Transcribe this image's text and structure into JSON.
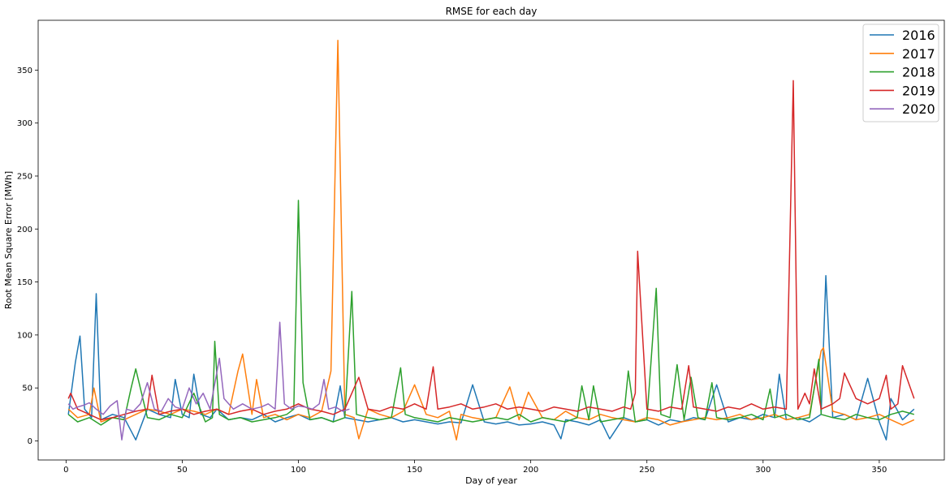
{
  "chart_data": {
    "type": "line",
    "title": "RMSE for each day",
    "xlabel": "Day of year",
    "ylabel": "Root Mean Square Error [MWh]",
    "xlim": [
      -12,
      378
    ],
    "ylim": [
      -18,
      397
    ],
    "xticks": [
      0,
      50,
      100,
      150,
      200,
      250,
      300,
      350
    ],
    "yticks": [
      0,
      50,
      100,
      150,
      200,
      250,
      300,
      350
    ],
    "grid": false,
    "legend_position": "top-right",
    "series": [
      {
        "name": "2016",
        "color": "#1f77b4",
        "x": [
          1,
          4,
          6,
          8,
          11,
          13,
          15,
          20,
          25,
          30,
          35,
          40,
          45,
          47,
          50,
          53,
          55,
          58,
          62,
          65,
          70,
          75,
          80,
          85,
          90,
          95,
          100,
          105,
          110,
          115,
          118,
          120,
          125,
          130,
          135,
          140,
          145,
          150,
          155,
          160,
          165,
          170,
          175,
          180,
          185,
          190,
          195,
          200,
          205,
          210,
          213,
          215,
          220,
          225,
          230,
          234,
          240,
          245,
          250,
          255,
          260,
          265,
          270,
          275,
          280,
          285,
          290,
          295,
          300,
          305,
          307,
          310,
          315,
          320,
          325,
          327,
          330,
          335,
          340,
          345,
          350,
          353,
          355,
          360,
          365
        ],
        "values": [
          25,
          74,
          99,
          30,
          22,
          139,
          20,
          25,
          22,
          1,
          30,
          25,
          22,
          58,
          25,
          22,
          63,
          25,
          22,
          30,
          20,
          22,
          20,
          25,
          18,
          22,
          25,
          20,
          22,
          18,
          52,
          22,
          20,
          18,
          20,
          22,
          18,
          20,
          18,
          16,
          18,
          17,
          53,
          18,
          16,
          18,
          15,
          16,
          18,
          15,
          2,
          20,
          18,
          15,
          20,
          2,
          22,
          18,
          20,
          15,
          20,
          18,
          22,
          20,
          53,
          18,
          22,
          20,
          25,
          22,
          63,
          20,
          22,
          18,
          25,
          156,
          22,
          25,
          20,
          59,
          18,
          1,
          40,
          20,
          30
        ]
      },
      {
        "name": "2017",
        "color": "#ff7f0e",
        "x": [
          1,
          5,
          10,
          12,
          15,
          20,
          25,
          30,
          35,
          40,
          45,
          50,
          55,
          60,
          65,
          70,
          74,
          76,
          80,
          82,
          85,
          90,
          95,
          100,
          105,
          110,
          114,
          117,
          120,
          124,
          126,
          130,
          135,
          140,
          145,
          150,
          155,
          160,
          165,
          168,
          170,
          175,
          180,
          185,
          191,
          195,
          199,
          205,
          210,
          215,
          220,
          225,
          230,
          235,
          240,
          245,
          250,
          255,
          260,
          265,
          270,
          275,
          280,
          285,
          290,
          295,
          300,
          305,
          310,
          315,
          320,
          325,
          326,
          330,
          335,
          340,
          345,
          350,
          355,
          360,
          365
        ],
        "values": [
          30,
          22,
          25,
          50,
          18,
          22,
          20,
          25,
          30,
          28,
          25,
          30,
          28,
          25,
          30,
          25,
          66,
          82,
          25,
          58,
          22,
          25,
          20,
          25,
          22,
          28,
          66,
          378,
          25,
          22,
          2,
          30,
          25,
          22,
          28,
          53,
          25,
          22,
          28,
          1,
          25,
          22,
          20,
          22,
          51,
          20,
          46,
          22,
          20,
          28,
          22,
          20,
          25,
          22,
          20,
          18,
          22,
          20,
          15,
          18,
          20,
          22,
          20,
          22,
          25,
          20,
          22,
          25,
          20,
          22,
          25,
          85,
          88,
          28,
          25,
          20,
          22,
          25,
          20,
          15,
          20
        ]
      },
      {
        "name": "2018",
        "color": "#2ca02c",
        "x": [
          1,
          5,
          10,
          15,
          20,
          25,
          28,
          30,
          35,
          40,
          45,
          50,
          55,
          60,
          63,
          64,
          66,
          70,
          75,
          80,
          85,
          90,
          95,
          98,
          100,
          102,
          105,
          110,
          115,
          120,
          123,
          125,
          130,
          135,
          140,
          144,
          146,
          150,
          155,
          160,
          165,
          170,
          175,
          180,
          185,
          190,
          195,
          200,
          205,
          210,
          215,
          220,
          222,
          225,
          227,
          230,
          235,
          240,
          242,
          245,
          250,
          254,
          256,
          260,
          263,
          266,
          269,
          272,
          275,
          278,
          280,
          285,
          290,
          295,
          300,
          303,
          305,
          310,
          315,
          320,
          324,
          325,
          330,
          335,
          340,
          345,
          350,
          355,
          360,
          365
        ],
        "values": [
          25,
          18,
          22,
          15,
          22,
          20,
          50,
          68,
          22,
          20,
          25,
          22,
          45,
          18,
          22,
          94,
          25,
          20,
          22,
          18,
          20,
          22,
          25,
          30,
          227,
          55,
          20,
          22,
          18,
          22,
          141,
          25,
          22,
          20,
          22,
          69,
          25,
          22,
          20,
          18,
          22,
          20,
          18,
          20,
          22,
          20,
          25,
          18,
          22,
          20,
          18,
          22,
          52,
          20,
          52,
          18,
          20,
          22,
          66,
          18,
          20,
          144,
          25,
          22,
          72,
          20,
          60,
          22,
          20,
          55,
          22,
          20,
          22,
          25,
          20,
          49,
          22,
          25,
          20,
          22,
          77,
          25,
          22,
          20,
          25,
          22,
          20,
          25,
          28,
          25
        ]
      },
      {
        "name": "2019",
        "color": "#d62728",
        "x": [
          1,
          2,
          5,
          10,
          15,
          20,
          25,
          30,
          35,
          37,
          40,
          45,
          50,
          55,
          60,
          65,
          70,
          75,
          80,
          85,
          90,
          95,
          100,
          105,
          110,
          115,
          120,
          126,
          130,
          135,
          140,
          145,
          150,
          155,
          158,
          160,
          165,
          170,
          175,
          180,
          185,
          190,
          195,
          200,
          205,
          210,
          215,
          220,
          225,
          230,
          235,
          240,
          243,
          245,
          246,
          250,
          255,
          260,
          265,
          268,
          270,
          275,
          280,
          285,
          290,
          295,
          300,
          305,
          310,
          313,
          315,
          318,
          320,
          322,
          325,
          330,
          333,
          335,
          340,
          345,
          350,
          353,
          355,
          358,
          360,
          365
        ],
        "values": [
          40,
          45,
          30,
          25,
          20,
          22,
          25,
          28,
          30,
          62,
          25,
          28,
          30,
          25,
          28,
          30,
          25,
          28,
          30,
          25,
          28,
          30,
          35,
          30,
          28,
          25,
          30,
          60,
          30,
          28,
          32,
          30,
          35,
          30,
          70,
          30,
          32,
          35,
          30,
          32,
          35,
          30,
          32,
          30,
          28,
          32,
          30,
          28,
          32,
          30,
          28,
          32,
          30,
          45,
          179,
          30,
          28,
          32,
          30,
          71,
          32,
          30,
          28,
          32,
          30,
          35,
          30,
          32,
          30,
          340,
          30,
          45,
          35,
          68,
          30,
          35,
          40,
          64,
          40,
          35,
          40,
          62,
          30,
          35,
          71,
          40
        ]
      },
      {
        "name": "2020",
        "color": "#9467bd",
        "x": [
          1,
          3,
          5,
          8,
          10,
          13,
          16,
          19,
          22,
          24,
          26,
          29,
          32,
          35,
          38,
          41,
          44,
          47,
          50,
          53,
          56,
          59,
          62,
          66,
          68,
          72,
          76,
          80,
          84,
          87,
          90,
          92,
          94,
          97,
          100,
          103,
          106,
          109,
          111,
          113,
          116,
          119,
          122
        ],
        "values": [
          35,
          30,
          32,
          34,
          36,
          30,
          25,
          33,
          38,
          1,
          30,
          28,
          35,
          55,
          30,
          28,
          40,
          32,
          30,
          50,
          35,
          45,
          30,
          78,
          40,
          30,
          35,
          30,
          32,
          35,
          30,
          112,
          35,
          30,
          33,
          32,
          30,
          35,
          58,
          30,
          32,
          28,
          30
        ]
      }
    ]
  }
}
